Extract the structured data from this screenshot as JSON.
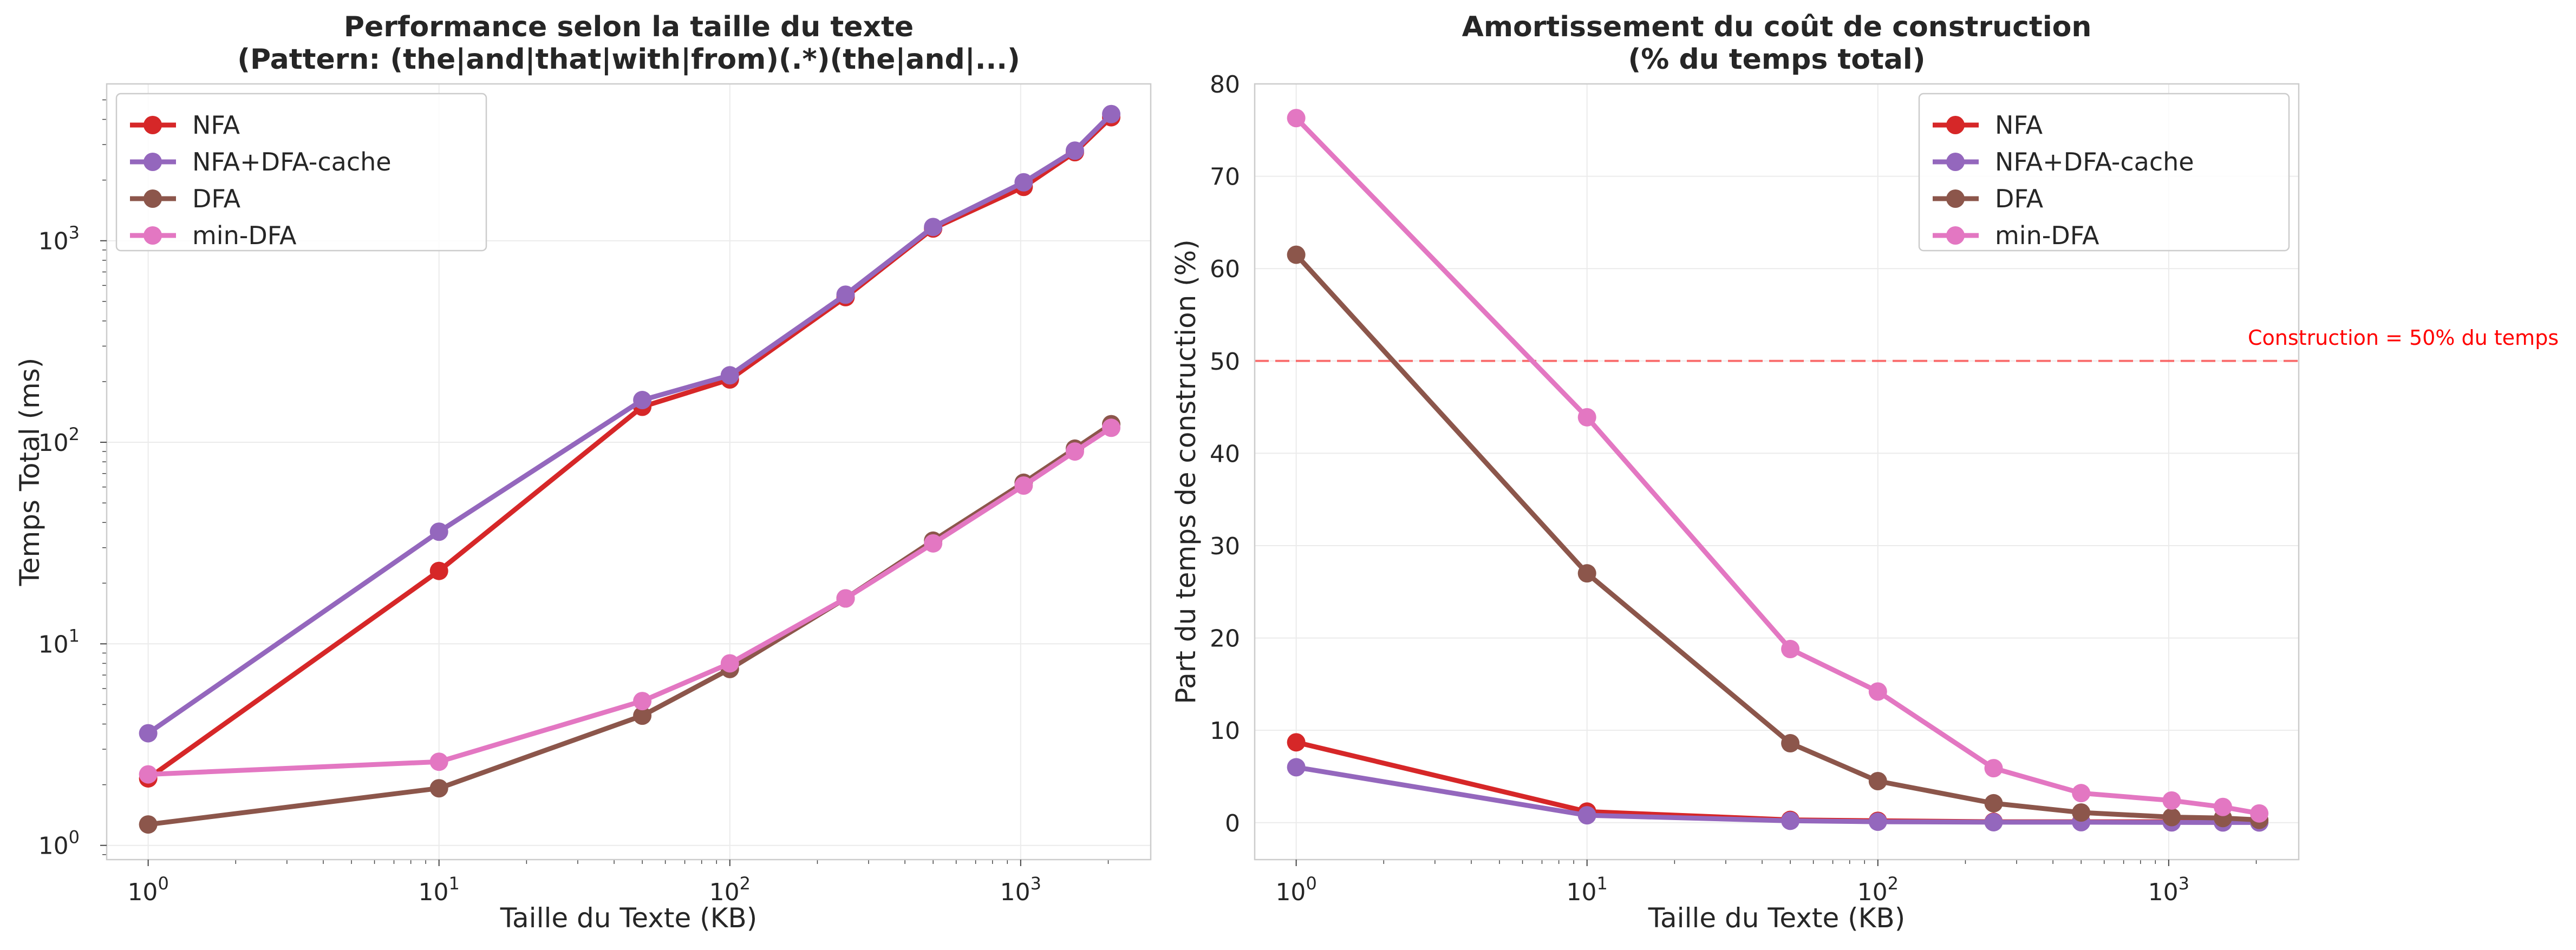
{
  "chart_data": [
    {
      "type": "line",
      "title_lines": [
        "Performance selon la taille du texte",
        "(Pattern: (the|and|that|with|from)(.*)(the|and|...)"
      ],
      "xlabel": "Taille du Texte (KB)",
      "ylabel": "Temps Total (ms)",
      "xscale": "log",
      "yscale": "log",
      "xlim": [
        0.72,
        2800
      ],
      "ylim": [
        0.85,
        6000
      ],
      "x_ticks": [
        {
          "value": 1,
          "base": "10",
          "exp": "0"
        },
        {
          "value": 10,
          "base": "10",
          "exp": "1"
        },
        {
          "value": 100,
          "base": "10",
          "exp": "2"
        },
        {
          "value": 1000,
          "base": "10",
          "exp": "3"
        }
      ],
      "y_ticks": [
        {
          "value": 1,
          "base": "10",
          "exp": "0"
        },
        {
          "value": 10,
          "base": "10",
          "exp": "1"
        },
        {
          "value": 100,
          "base": "10",
          "exp": "2"
        },
        {
          "value": 1000,
          "base": "10",
          "exp": "3"
        }
      ],
      "grid": true,
      "legend_position": "upper-left",
      "x": [
        1,
        10,
        50,
        100,
        250,
        500,
        1024,
        1536,
        2048
      ],
      "series": [
        {
          "name": "NFA",
          "color": "#d62728",
          "values": [
            2.15,
            23,
            150,
            205,
            525,
            1150,
            1850,
            2750,
            4100
          ]
        },
        {
          "name": "NFA+DFA-cache",
          "color": "#9467bd",
          "values": [
            3.6,
            36,
            162,
            215,
            540,
            1170,
            1950,
            2800,
            4250
          ]
        },
        {
          "name": "DFA",
          "color": "#8c564b",
          "values": [
            1.27,
            1.92,
            4.4,
            7.5,
            16.8,
            32.5,
            63,
            93,
            123
          ]
        },
        {
          "name": "min-DFA",
          "color": "#e377c2",
          "values": [
            2.25,
            2.6,
            5.2,
            8.0,
            16.8,
            31.5,
            61,
            90,
            118
          ]
        }
      ]
    },
    {
      "type": "line",
      "title_lines": [
        "Amortissement du coût de construction",
        "(% du temps total)"
      ],
      "xlabel": "Taille du Texte (KB)",
      "ylabel": "Part du temps de construction (%)",
      "xscale": "log",
      "yscale": "linear",
      "xlim": [
        0.72,
        2800
      ],
      "ylim": [
        -4,
        80
      ],
      "x_ticks": [
        {
          "value": 1,
          "base": "10",
          "exp": "0"
        },
        {
          "value": 10,
          "base": "10",
          "exp": "1"
        },
        {
          "value": 100,
          "base": "10",
          "exp": "2"
        },
        {
          "value": 1000,
          "base": "10",
          "exp": "3"
        }
      ],
      "y_ticks": [
        {
          "value": 0,
          "label": "0"
        },
        {
          "value": 10,
          "label": "10"
        },
        {
          "value": 20,
          "label": "20"
        },
        {
          "value": 30,
          "label": "30"
        },
        {
          "value": 40,
          "label": "40"
        },
        {
          "value": 50,
          "label": "50"
        },
        {
          "value": 60,
          "label": "60"
        },
        {
          "value": 70,
          "label": "70"
        },
        {
          "value": 80,
          "label": "80"
        }
      ],
      "grid": true,
      "legend_position": "upper-right",
      "x": [
        1,
        10,
        50,
        100,
        250,
        500,
        1024,
        1536,
        2048
      ],
      "series": [
        {
          "name": "NFA",
          "color": "#d62728",
          "values": [
            8.7,
            1.2,
            0.3,
            0.2,
            0.1,
            0.1,
            0.1,
            0.05,
            0.05
          ]
        },
        {
          "name": "NFA+DFA-cache",
          "color": "#9467bd",
          "values": [
            6.0,
            0.8,
            0.2,
            0.1,
            0.05,
            0.05,
            0.03,
            0.02,
            0.02
          ]
        },
        {
          "name": "DFA",
          "color": "#8c564b",
          "values": [
            61.5,
            27.0,
            8.6,
            4.5,
            2.1,
            1.1,
            0.6,
            0.5,
            0.3
          ]
        },
        {
          "name": "min-DFA",
          "color": "#e377c2",
          "values": [
            76.3,
            43.9,
            18.8,
            14.2,
            5.9,
            3.2,
            2.4,
            1.7,
            1.0
          ]
        }
      ],
      "reference_line": {
        "value": 50,
        "color": "#ff0000",
        "label": "Construction = 50% du temps"
      }
    }
  ]
}
